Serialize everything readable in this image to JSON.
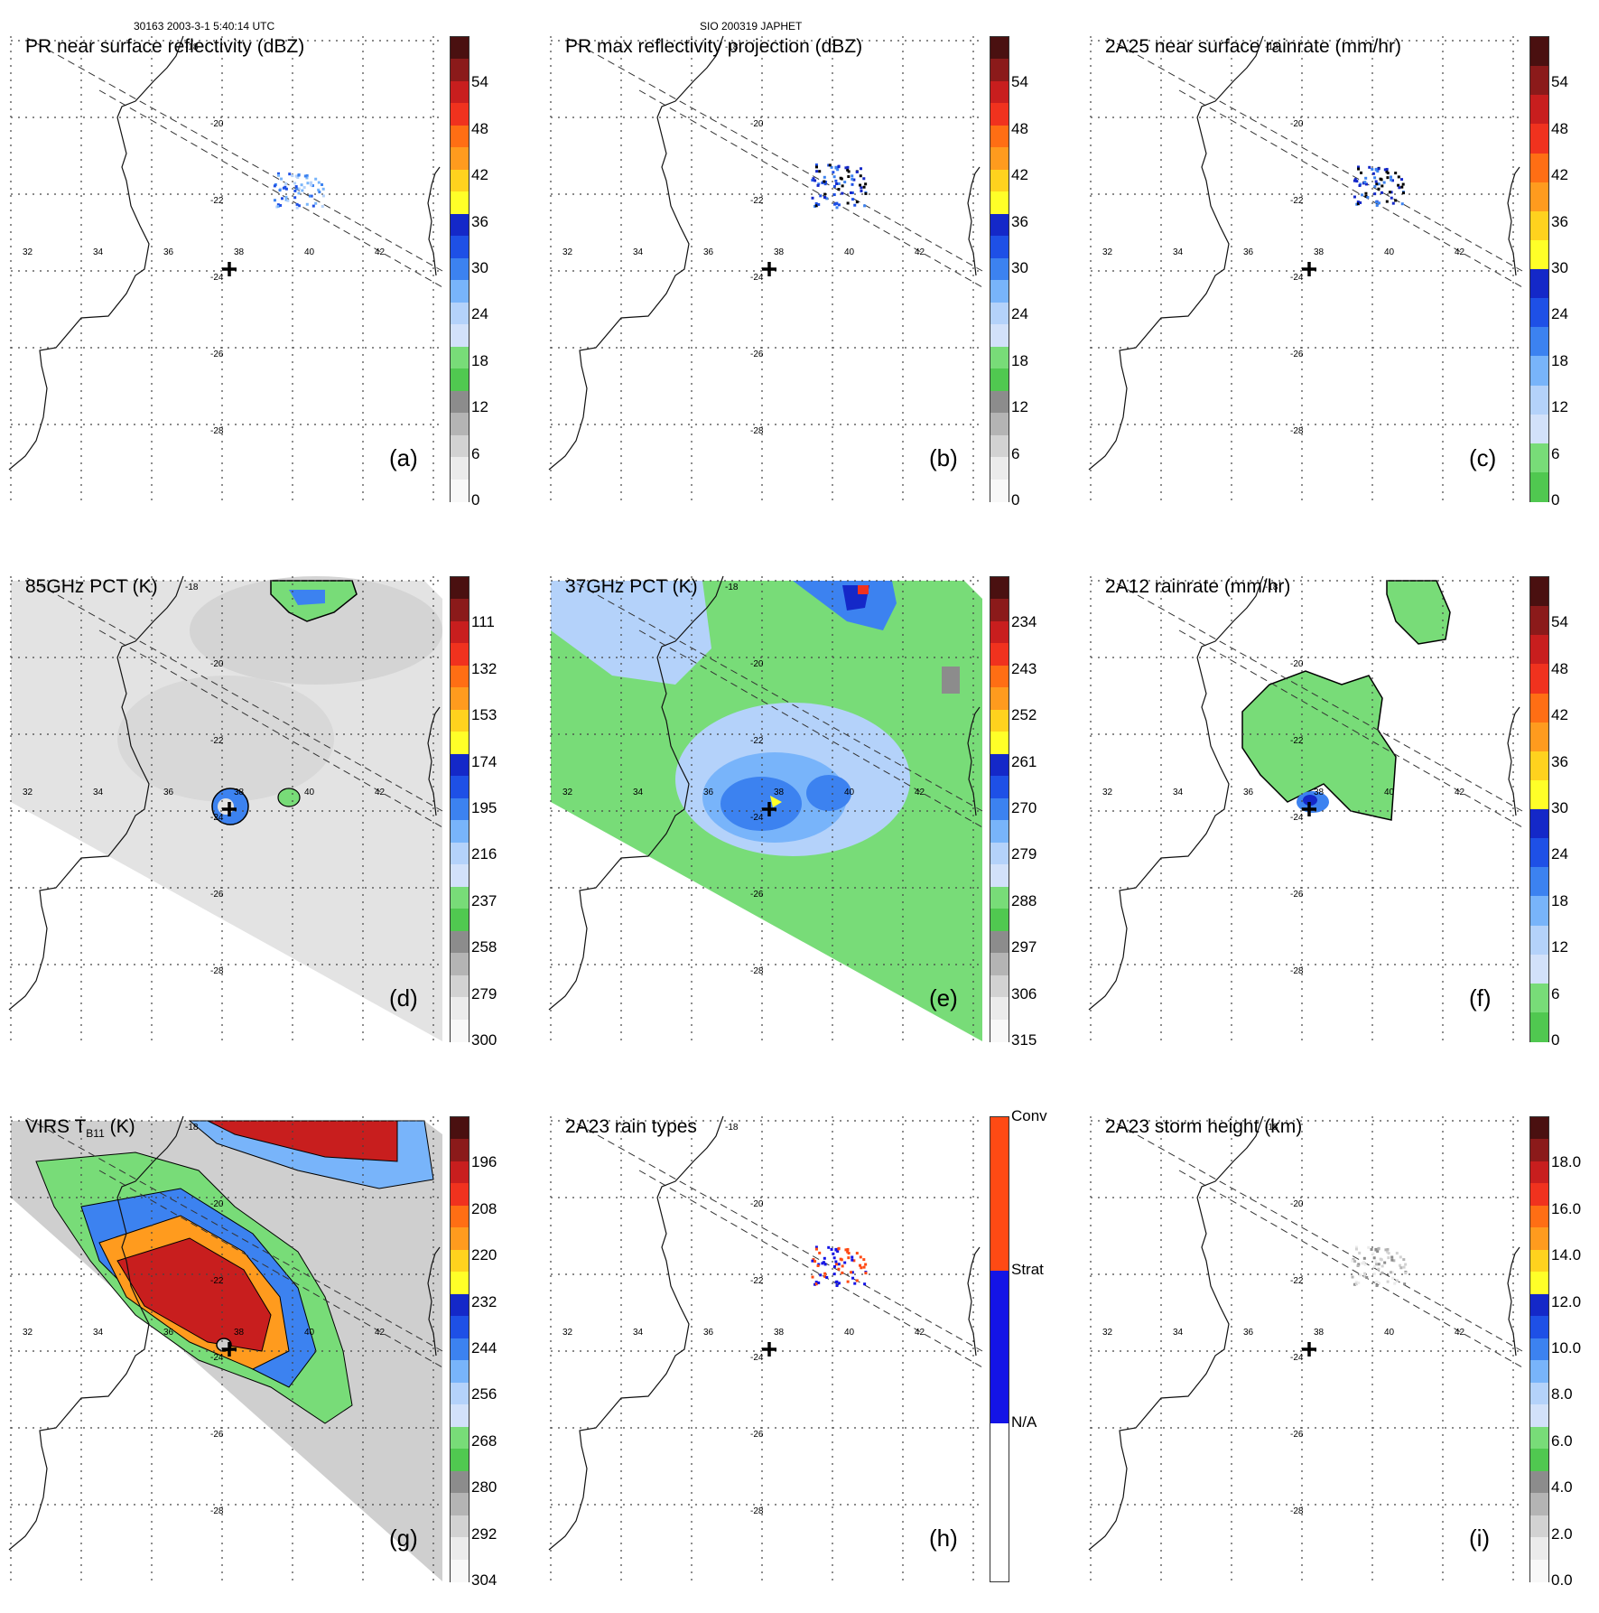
{
  "header": {
    "left": "30163 2003-3-1 5:40:14 UTC",
    "center": "SIO 200319 JAPHET"
  },
  "map": {
    "lon_labels": [
      "32",
      "34",
      "36",
      "38",
      "40",
      "42"
    ],
    "lat_labels": [
      "-18",
      "-20",
      "-22",
      "-24",
      "-26",
      "-28"
    ]
  },
  "panels": [
    {
      "id": "a",
      "title": "PR near surface reflectivity (dBZ)",
      "label": "(a)",
      "colorbar": {
        "ticks": [
          "54",
          "48",
          "42",
          "36",
          "30",
          "24",
          "18",
          "12",
          "6",
          "0"
        ],
        "colors": [
          "#4a1010",
          "#8b1a1a",
          "#c81e1e",
          "#f0321e",
          "#ff6e14",
          "#ff9b1e",
          "#ffd21e",
          "#ffff28",
          "#1428c8",
          "#1e50e6",
          "#3c82f0",
          "#78b4fa",
          "#b4d2fa",
          "#d2e1fa",
          "#78dc78",
          "#50c850",
          "#8c8c8c",
          "#b4b4b4",
          "#d2d2d2",
          "#ebebeb",
          "#f8f8f8"
        ]
      }
    },
    {
      "id": "b",
      "title": "PR max reflectivity projection (dBZ)",
      "label": "(b)",
      "colorbar": {
        "ticks": [
          "54",
          "48",
          "42",
          "36",
          "30",
          "24",
          "18",
          "12",
          "6",
          "0"
        ],
        "colors": [
          "#4a1010",
          "#8b1a1a",
          "#c81e1e",
          "#f0321e",
          "#ff6e14",
          "#ff9b1e",
          "#ffd21e",
          "#ffff28",
          "#1428c8",
          "#1e50e6",
          "#3c82f0",
          "#78b4fa",
          "#b4d2fa",
          "#d2e1fa",
          "#78dc78",
          "#50c850",
          "#8c8c8c",
          "#b4b4b4",
          "#d2d2d2",
          "#ebebeb",
          "#f8f8f8"
        ]
      }
    },
    {
      "id": "c",
      "title": "2A25 near surface rainrate (mm/hr)",
      "label": "(c)",
      "colorbar": {
        "ticks": [
          "54",
          "48",
          "42",
          "36",
          "30",
          "24",
          "18",
          "12",
          "6",
          "0"
        ],
        "colors": [
          "#4a1010",
          "#8b1a1a",
          "#c81e1e",
          "#f0321e",
          "#ff6e14",
          "#ff9b1e",
          "#ffd21e",
          "#ffff28",
          "#1428c8",
          "#1e50e6",
          "#3c82f0",
          "#78b4fa",
          "#b4d2fa",
          "#d2e1fa",
          "#78dc78",
          "#50c850"
        ]
      }
    },
    {
      "id": "d",
      "title": "85GHz PCT (K)",
      "label": "(d)",
      "colorbar": {
        "ticks": [
          "111",
          "132",
          "153",
          "174",
          "195",
          "216",
          "237",
          "258",
          "279",
          "300"
        ],
        "colors": [
          "#4a1010",
          "#8b1a1a",
          "#c81e1e",
          "#f0321e",
          "#ff6e14",
          "#ff9b1e",
          "#ffd21e",
          "#ffff28",
          "#1428c8",
          "#1e50e6",
          "#3c82f0",
          "#78b4fa",
          "#b4d2fa",
          "#d2e1fa",
          "#78dc78",
          "#50c850",
          "#8c8c8c",
          "#b4b4b4",
          "#d2d2d2",
          "#ebebeb",
          "#f8f8f8"
        ]
      }
    },
    {
      "id": "e",
      "title": "37GHz PCT (K)",
      "label": "(e)",
      "colorbar": {
        "ticks": [
          "234",
          "243",
          "252",
          "261",
          "270",
          "279",
          "288",
          "297",
          "306",
          "315"
        ],
        "colors": [
          "#4a1010",
          "#8b1a1a",
          "#c81e1e",
          "#f0321e",
          "#ff6e14",
          "#ff9b1e",
          "#ffd21e",
          "#ffff28",
          "#1428c8",
          "#1e50e6",
          "#3c82f0",
          "#78b4fa",
          "#b4d2fa",
          "#d2e1fa",
          "#78dc78",
          "#50c850",
          "#8c8c8c",
          "#b4b4b4",
          "#d2d2d2",
          "#ebebeb",
          "#f8f8f8"
        ]
      }
    },
    {
      "id": "f",
      "title": "2A12 rainrate (mm/hr)",
      "label": "(f)",
      "colorbar": {
        "ticks": [
          "54",
          "48",
          "42",
          "36",
          "30",
          "24",
          "18",
          "12",
          "6",
          "0"
        ],
        "colors": [
          "#4a1010",
          "#8b1a1a",
          "#c81e1e",
          "#f0321e",
          "#ff6e14",
          "#ff9b1e",
          "#ffd21e",
          "#ffff28",
          "#1428c8",
          "#1e50e6",
          "#3c82f0",
          "#78b4fa",
          "#b4d2fa",
          "#d2e1fa",
          "#78dc78",
          "#50c850"
        ]
      }
    },
    {
      "id": "g",
      "title_main": "VIRS T",
      "title_sub": "B11",
      "title_unit": " (K)",
      "label": "(g)",
      "colorbar": {
        "ticks": [
          "196",
          "208",
          "220",
          "232",
          "244",
          "256",
          "268",
          "280",
          "292",
          "304"
        ],
        "colors": [
          "#4a1010",
          "#8b1a1a",
          "#c81e1e",
          "#f0321e",
          "#ff6e14",
          "#ff9b1e",
          "#ffd21e",
          "#ffff28",
          "#1428c8",
          "#1e50e6",
          "#3c82f0",
          "#78b4fa",
          "#b4d2fa",
          "#d2e1fa",
          "#78dc78",
          "#50c850",
          "#8c8c8c",
          "#b4b4b4",
          "#d2d2d2",
          "#ebebeb",
          "#f8f8f8"
        ]
      }
    },
    {
      "id": "h",
      "title": "2A23 rain types",
      "label": "(h)",
      "colorbar": {
        "ticks": [
          "Conv",
          "Strat",
          "N/A"
        ],
        "colors": [
          "#ff4a14",
          "#1414e6",
          "#ffffff"
        ]
      }
    },
    {
      "id": "i",
      "title": "2A23 storm height (km)",
      "label": "(i)",
      "colorbar": {
        "ticks": [
          "18.0",
          "16.0",
          "14.0",
          "12.0",
          "10.0",
          "8.0",
          "6.0",
          "4.0",
          "2.0",
          "0.0"
        ],
        "colors": [
          "#4a1010",
          "#8b1a1a",
          "#c81e1e",
          "#f0321e",
          "#ff6e14",
          "#ff9b1e",
          "#ffd21e",
          "#ffff28",
          "#1428c8",
          "#1e50e6",
          "#3c82f0",
          "#78b4fa",
          "#b4d2fa",
          "#d2e1fa",
          "#78dc78",
          "#50c850",
          "#8c8c8c",
          "#b4b4b4",
          "#d2d2d2",
          "#ebebeb",
          "#f8f8f8"
        ]
      }
    }
  ]
}
